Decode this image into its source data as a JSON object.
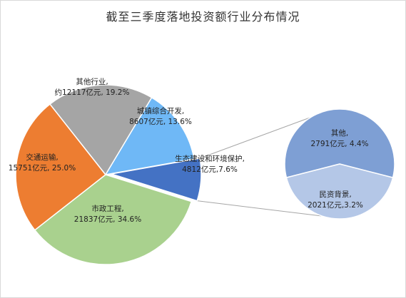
{
  "chart_data": {
    "type": "pie",
    "title": "截至三季度落地投资额行业分布情况",
    "main_pie": {
      "slices": [
        {
          "name": "市政工程",
          "value": 21837,
          "percent": 34.6,
          "label_line1": "市政工程,",
          "label_line2": "21837亿元, 34.6%",
          "color": "#a9d18e"
        },
        {
          "name": "交通运输",
          "value": 15751,
          "percent": 25.0,
          "label_line1": "交通运输,",
          "label_line2": "15751亿元, 25.0%",
          "color": "#ed7d31"
        },
        {
          "name": "其他行业",
          "value": 12117,
          "percent": 19.2,
          "label_line1": "其他行业,",
          "label_line2": "约12117亿元, 19.2%",
          "color": "#a5a5a5"
        },
        {
          "name": "城镇综合开发",
          "value": 8607,
          "percent": 13.6,
          "label_line1": "城镇综合开发,",
          "label_line2": "8607亿元, 13.6%",
          "color": "#6fb8f6"
        },
        {
          "name": "生态建设和环境保护",
          "value": 4812,
          "percent": 7.6,
          "label_line1": "生态建设和环境保护,",
          "label_line2": "4812亿元,7.6%",
          "color": "#4472c4"
        }
      ]
    },
    "secondary_pie": {
      "of_slice": "生态建设和环境保护",
      "slices": [
        {
          "name": "其他",
          "value": 2791,
          "percent": 4.4,
          "label_line1": "其他,",
          "label_line2": "2791亿元, 4.4%",
          "color": "#7e9fd4"
        },
        {
          "name": "民资背景",
          "value": 2021,
          "percent": 3.2,
          "label_line1": "民资背景,",
          "label_line2": "2021亿元,3.2%",
          "color": "#b4c7e7"
        }
      ]
    }
  }
}
